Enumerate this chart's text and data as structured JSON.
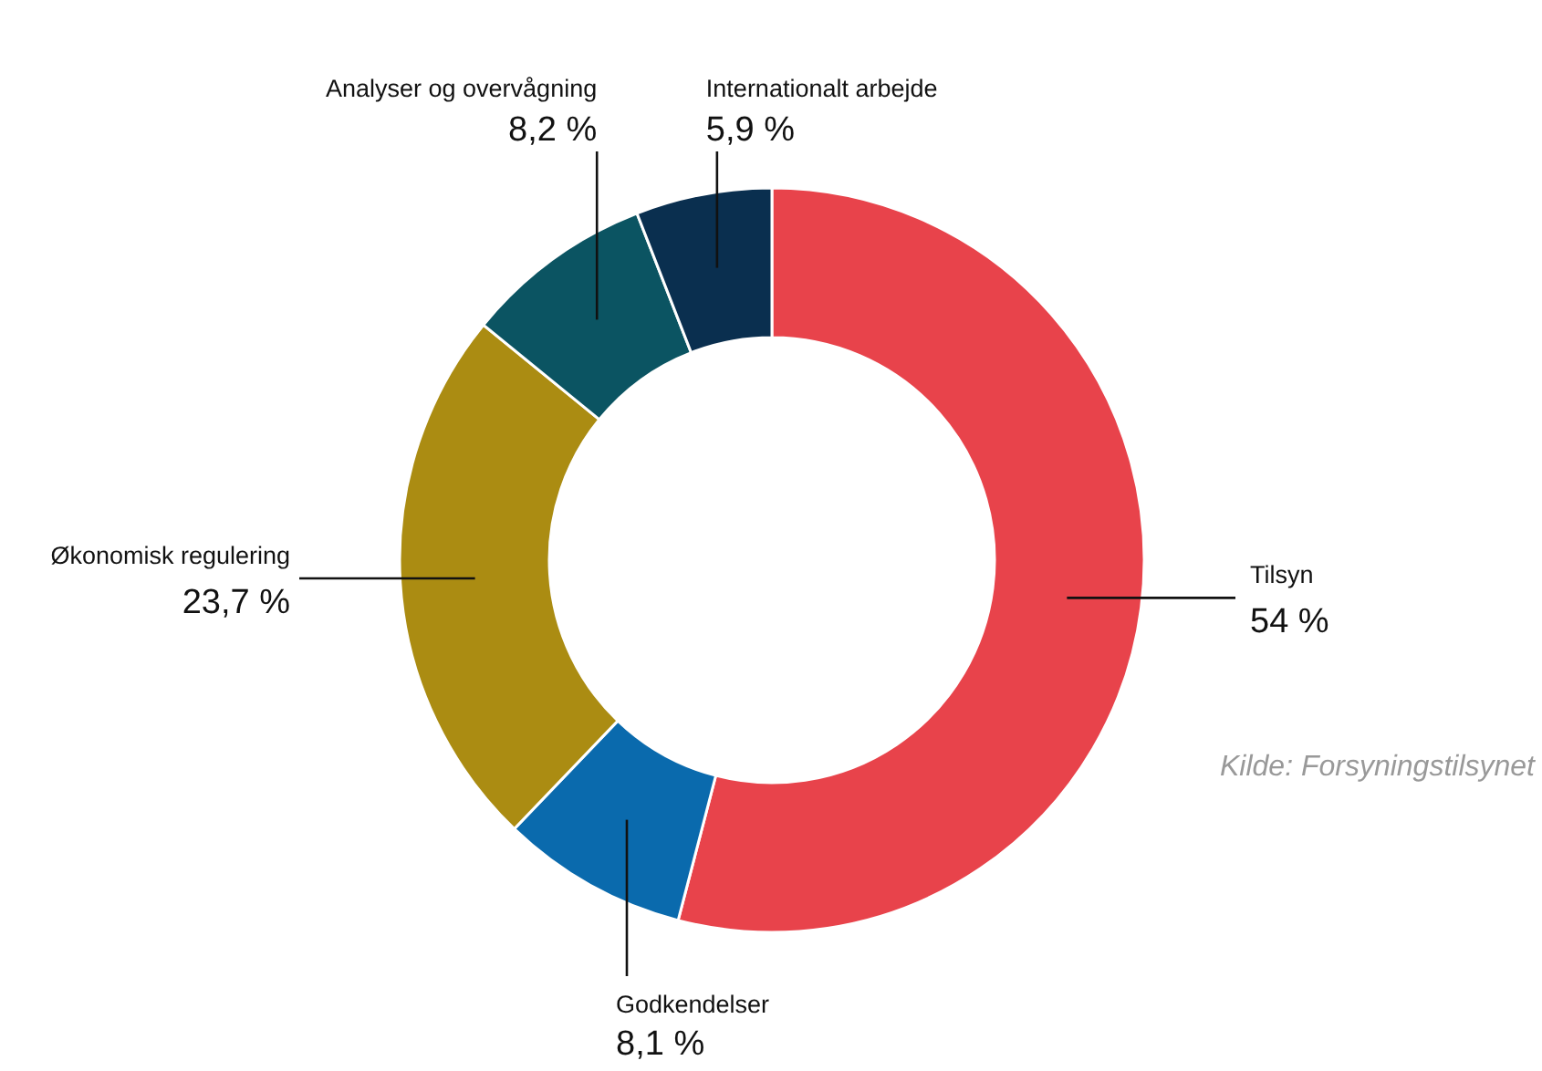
{
  "chart_data": {
    "type": "donut",
    "categories": [
      "Tilsyn",
      "Godkendelser",
      "Økonomisk regulering",
      "Analyser og overvågning",
      "Internationalt arbejde"
    ],
    "values": [
      54,
      8.1,
      23.7,
      8.2,
      5.9
    ],
    "value_labels": [
      "54 %",
      "8,1 %",
      "23,7 %",
      "8,2 %",
      "5,9 %"
    ],
    "colors": [
      "#e8434b",
      "#0a6aad",
      "#ab8c12",
      "#0b5462",
      "#0a2f4f"
    ],
    "annotations": [
      "Kilde: Forsyningstilsynet"
    ]
  }
}
